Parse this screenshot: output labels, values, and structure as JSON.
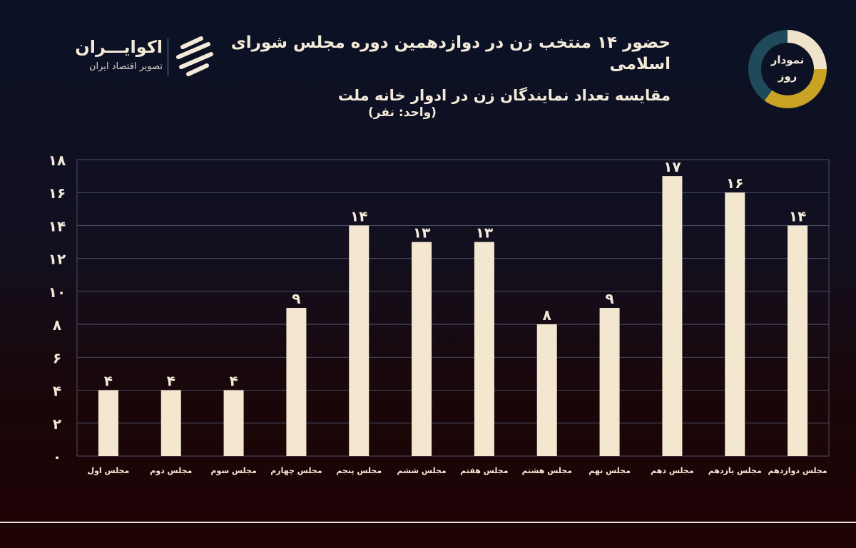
{
  "header": {
    "title": "حضور ۱۴ منتخب زن در دوازدهمین دوره مجلس شورای اسلامی",
    "subtitle": "مقایسه تعداد نمایندگان زن در ادوار خانه ملت",
    "unit": "(واحد: نفر)"
  },
  "brand": {
    "name": "اکوایـــران",
    "tagline": "تصویر اقتصاد ایران"
  },
  "badge": {
    "line1": "نمودار",
    "line2": "روز",
    "colors": {
      "cream": "#efe3cc",
      "gold": "#c9a323",
      "teal": "#1e4a5c"
    }
  },
  "chart_data": {
    "type": "bar",
    "categories": [
      "مجلس اول",
      "مجلس دوم",
      "مجلس سوم",
      "مجلس چهارم",
      "مجلس پنجم",
      "مجلس ششم",
      "مجلس هفتم",
      "مجلس هشتم",
      "مجلس نهم",
      "مجلس دهم",
      "مجلس یازدهم",
      "مجلس دوازدهم"
    ],
    "values": [
      4,
      4,
      4,
      9,
      14,
      13,
      13,
      8,
      9,
      17,
      16,
      14
    ],
    "value_labels": [
      "۴",
      "۴",
      "۴",
      "۹",
      "۱۴",
      "۱۳",
      "۱۳",
      "۸",
      "۹",
      "۱۷",
      "۱۶",
      "۱۴"
    ],
    "yticks": [
      0,
      2,
      4,
      6,
      8,
      10,
      12,
      14,
      16,
      18
    ],
    "ytick_labels": [
      "۰",
      "۲",
      "۴",
      "۶",
      "۸",
      "۱۰",
      "۱۲",
      "۱۴",
      "۱۶",
      "۱۸"
    ],
    "ylim": [
      0,
      18
    ],
    "grid": true,
    "bar_color": "#f3e7cf",
    "grid_color": "#4a4f66",
    "title": "حضور ۱۴ منتخب زن در دوازدهمین دوره مجلس شورای اسلامی",
    "subtitle": "مقایسه تعداد نمایندگان زن در ادوار خانه ملت",
    "xlabel": "",
    "ylabel": "(واحد: نفر)"
  }
}
